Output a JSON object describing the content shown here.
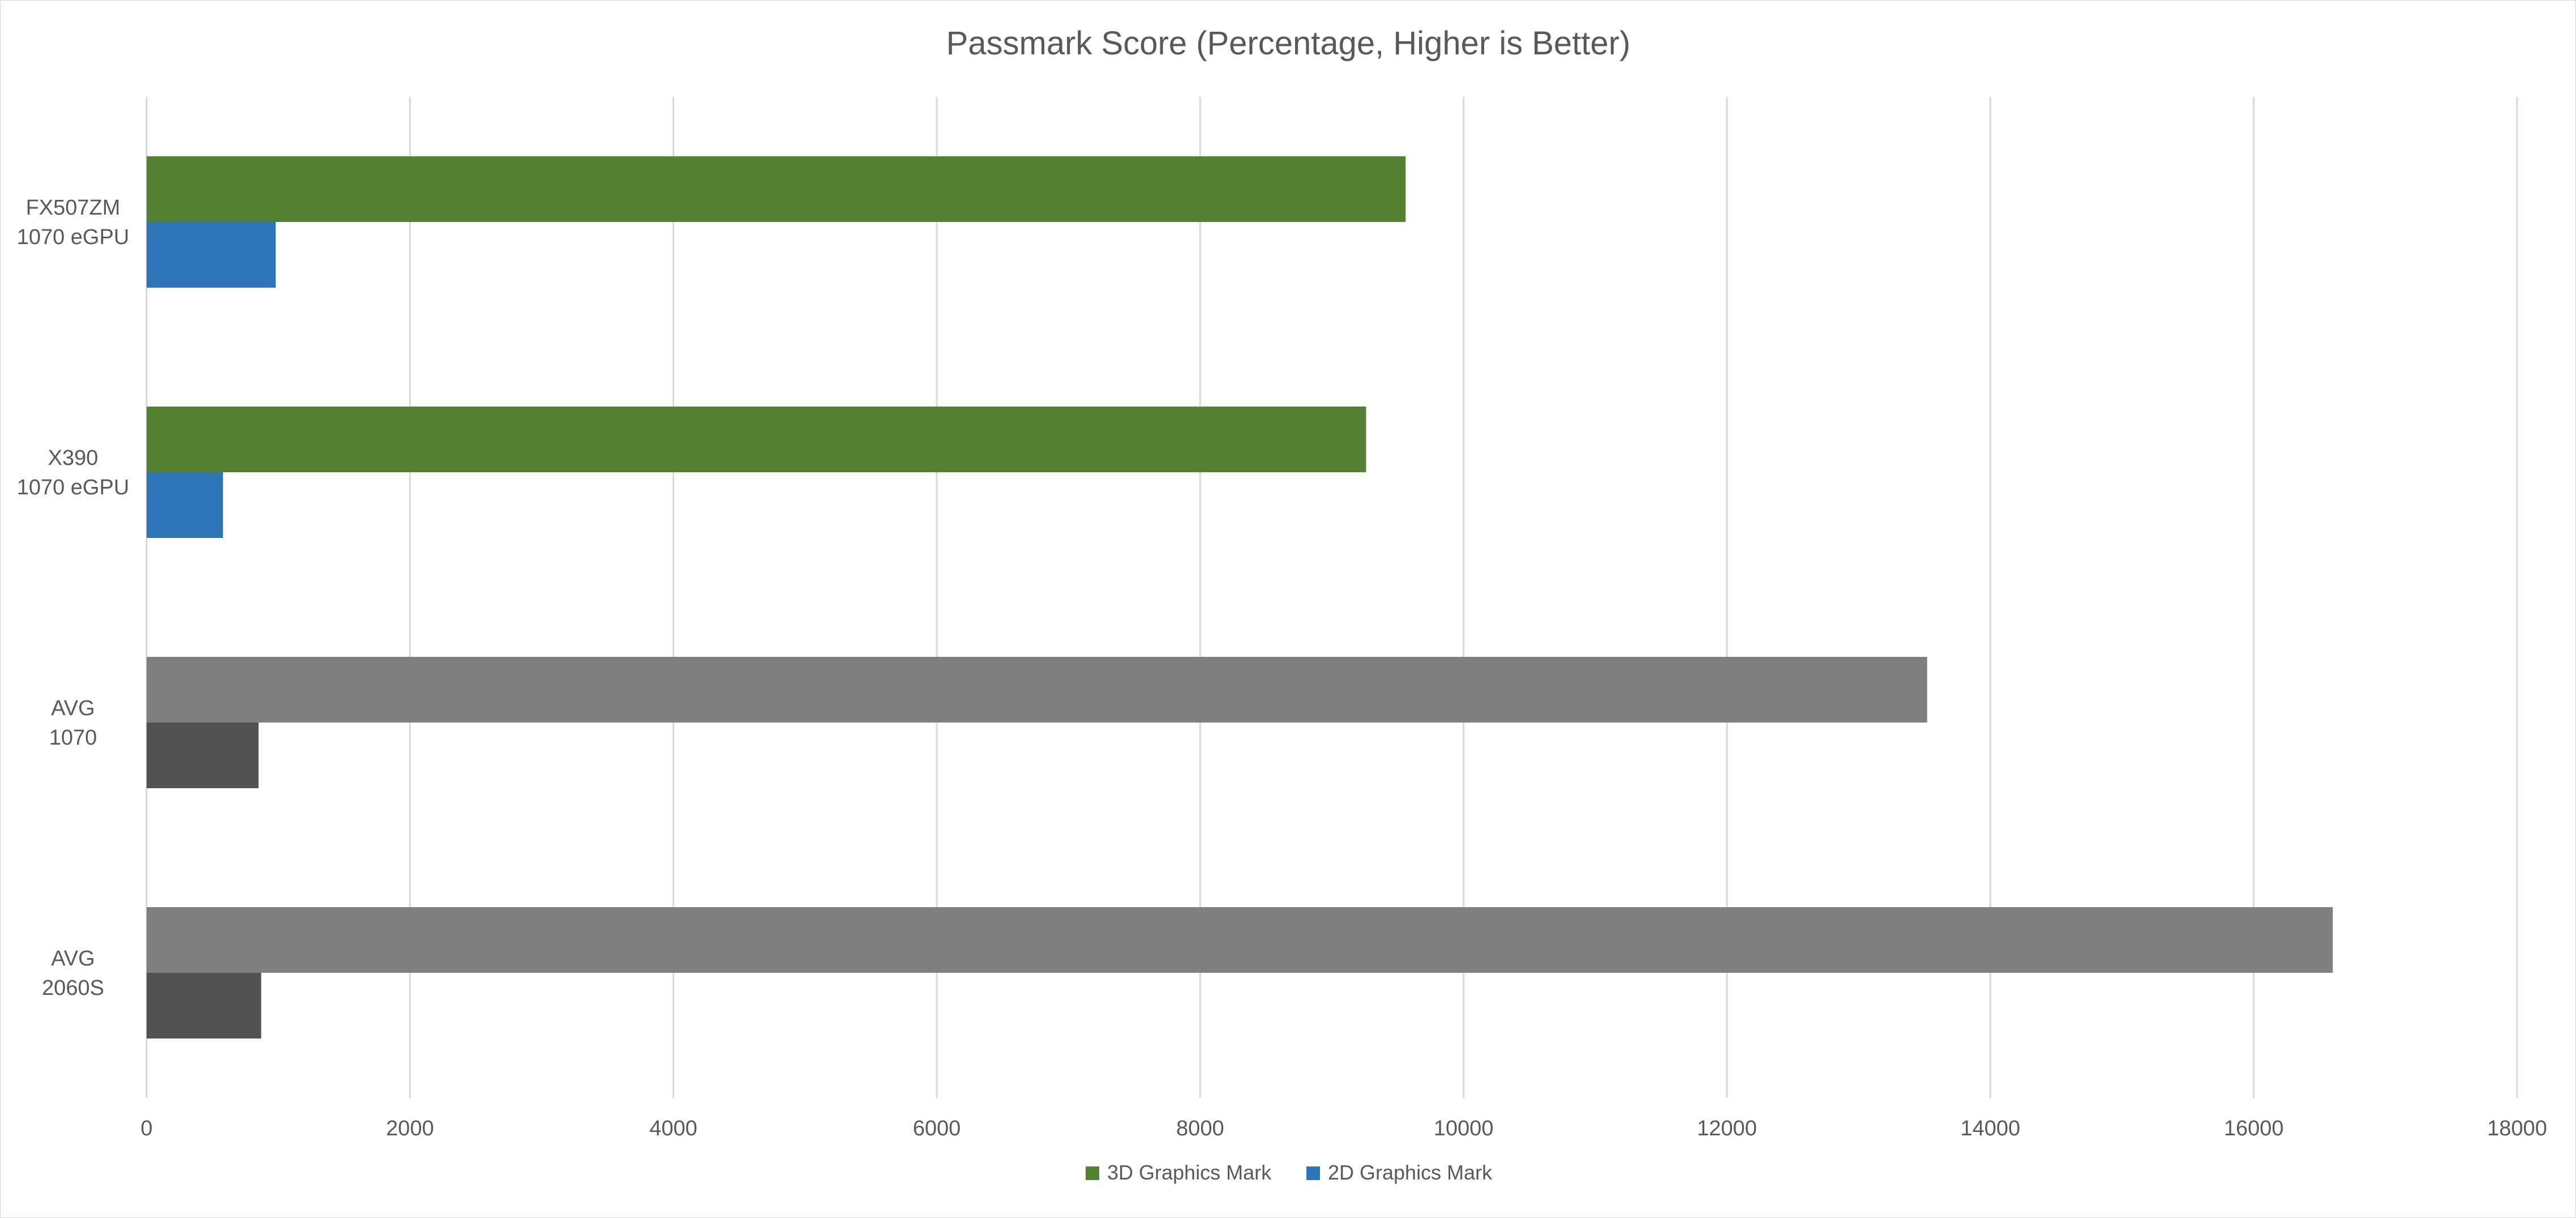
{
  "chart_data": {
    "type": "bar",
    "orientation": "horizontal",
    "title": "Passmark Score (Percentage, Higher is Better)",
    "xlabel": "",
    "ylabel": "",
    "xlim": [
      0,
      18000
    ],
    "x_ticks": [
      0,
      2000,
      4000,
      6000,
      8000,
      10000,
      12000,
      14000,
      16000,
      18000
    ],
    "grid": true,
    "legend_position": "bottom",
    "categories": [
      {
        "lines": [
          "FX507ZM",
          "1070 eGPU"
        ]
      },
      {
        "lines": [
          "X390",
          "1070 eGPU"
        ]
      },
      {
        "lines": [
          "AVG",
          "1070"
        ]
      },
      {
        "lines": [
          "AVG",
          "2060S"
        ]
      }
    ],
    "series": [
      {
        "name": "3D Graphics Mark",
        "color": "#548235",
        "values": [
          9560,
          9260,
          13520,
          16600
        ],
        "point_colors": [
          "#548235",
          "#548235",
          "#7f7f7f",
          "#7f7f7f"
        ]
      },
      {
        "name": "2D Graphics Mark",
        "color": "#2e75b6",
        "values": [
          980,
          580,
          850,
          870
        ],
        "point_colors": [
          "#2e75b6",
          "#2e75b6",
          "#525252",
          "#525252"
        ]
      }
    ],
    "gridline_color": "#d9d9d9"
  }
}
